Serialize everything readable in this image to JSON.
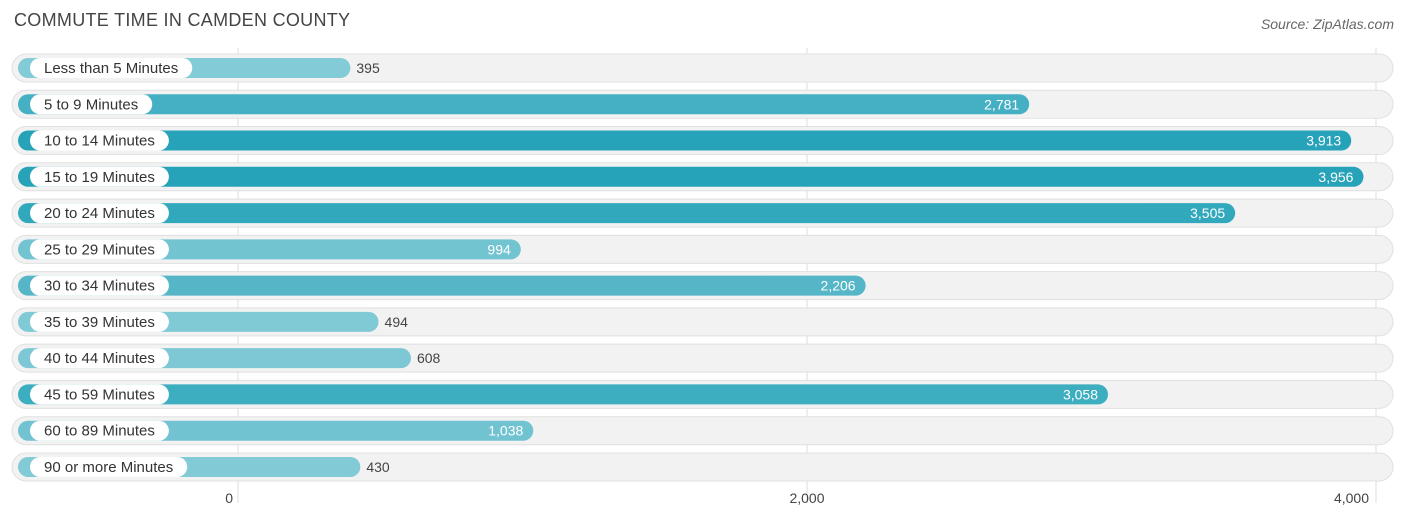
{
  "header": {
    "title": "COMMUTE TIME IN CAMDEN COUNTY",
    "source": "Source: ZipAtlas.com"
  },
  "chart_data": {
    "type": "bar",
    "orientation": "horizontal",
    "categories": [
      "Less than 5 Minutes",
      "5 to 9 Minutes",
      "10 to 14 Minutes",
      "15 to 19 Minutes",
      "20 to 24 Minutes",
      "25 to 29 Minutes",
      "30 to 34 Minutes",
      "35 to 39 Minutes",
      "40 to 44 Minutes",
      "45 to 59 Minutes",
      "60 to 89 Minutes",
      "90 or more Minutes"
    ],
    "values": [
      395,
      2781,
      3913,
      3956,
      3505,
      994,
      2206,
      494,
      608,
      3058,
      1038,
      430
    ],
    "value_labels": [
      "395",
      "2,781",
      "3,913",
      "3,956",
      "3,505",
      "994",
      "2,206",
      "494",
      "608",
      "3,058",
      "1,038",
      "430"
    ],
    "xlim": [
      0,
      4000
    ],
    "xticks": [
      0,
      2000,
      4000
    ],
    "xtick_labels": [
      "0",
      "2,000",
      "4,000"
    ],
    "grid": true,
    "colors": {
      "bar_light": "#8dcfd9",
      "bar_dark": "#26a3b9",
      "row_bg": "#f2f2f2",
      "row_border": "#e0e0e0",
      "grid": "#dddddd",
      "label_text": "#333333",
      "value_text_inside": "#ffffff",
      "value_text_outside": "#444444"
    }
  }
}
